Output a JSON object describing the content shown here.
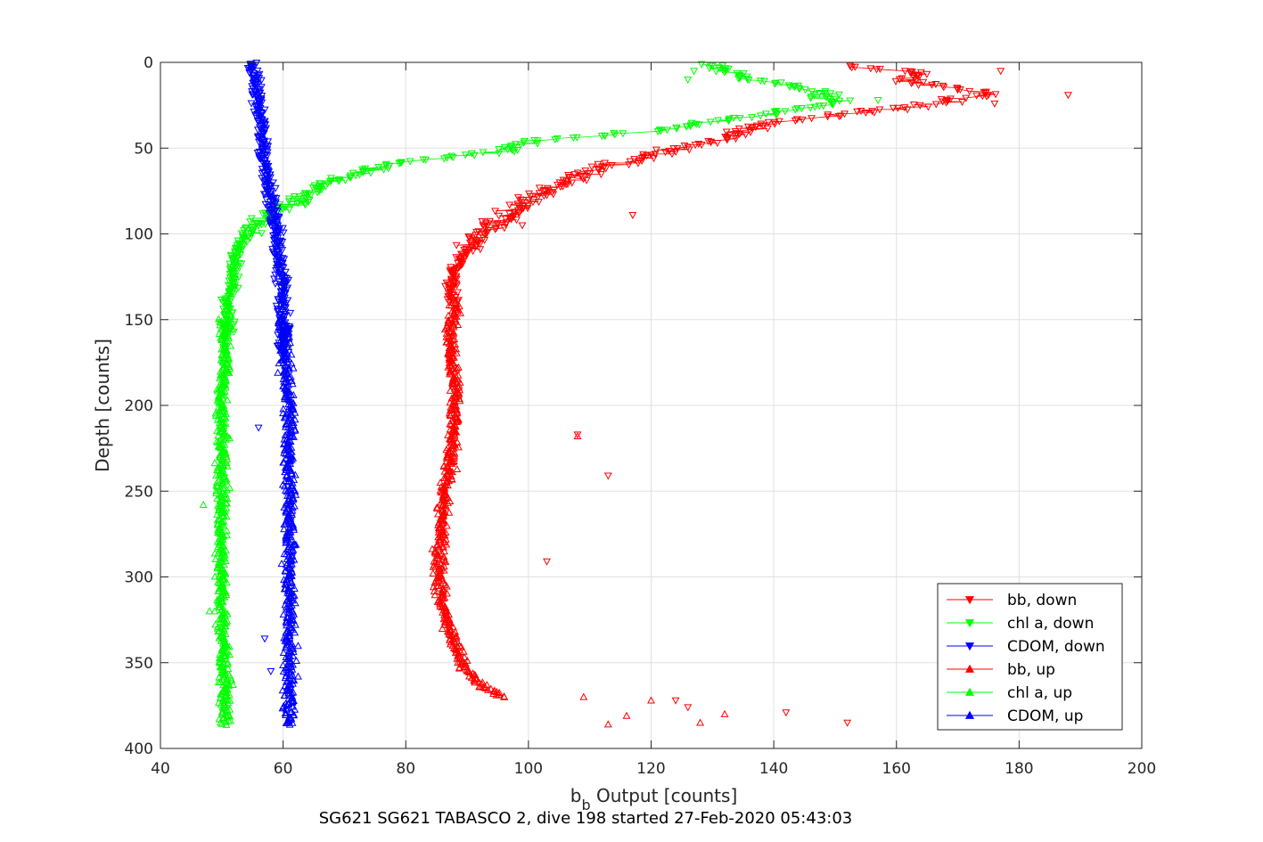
{
  "chart_data": {
    "type": "scatter",
    "title": "SG621 SG621 TABASCO 2, dive 198 started 27-Feb-2020 05:43:03",
    "xlabel_main": "b",
    "xlabel_sub": "b",
    "xlabel_rest": " Output [counts]",
    "ylabel": "Depth [counts]",
    "xlim": [
      40,
      200
    ],
    "ylim": [
      0,
      400
    ],
    "y_reversed": true,
    "grid": true,
    "legend_position": "bottom-right",
    "xticks": [
      "40",
      "60",
      "80",
      "100",
      "120",
      "140",
      "160",
      "180",
      "200"
    ],
    "yticks": [
      "0",
      "50",
      "100",
      "150",
      "200",
      "250",
      "300",
      "350",
      "400"
    ],
    "series": [
      {
        "name": "bb, down",
        "color": "#ff0000",
        "marker": "triangle-down",
        "connected": true,
        "profile": [
          [
            2,
            150
          ],
          [
            6,
            165
          ],
          [
            10,
            160
          ],
          [
            18,
            175
          ],
          [
            25,
            165
          ],
          [
            35,
            140
          ],
          [
            45,
            130
          ],
          [
            55,
            120
          ],
          [
            62,
            112
          ],
          [
            70,
            106
          ],
          [
            80,
            100
          ],
          [
            90,
            97
          ],
          [
            100,
            92
          ],
          [
            110,
            90
          ],
          [
            120,
            88
          ],
          [
            130,
            87.5
          ],
          [
            140,
            87.5
          ]
        ],
        "outliers": [
          [
            5,
            177
          ],
          [
            19,
            188
          ],
          [
            24,
            176
          ],
          [
            89,
            117
          ],
          [
            95,
            99
          ],
          [
            217,
            108
          ],
          [
            241,
            113
          ],
          [
            291,
            103
          ],
          [
            379,
            142
          ],
          [
            385,
            152
          ],
          [
            372,
            124
          ],
          [
            376,
            126
          ]
        ]
      },
      {
        "name": "chl a, down",
        "color": "#00ff00",
        "marker": "triangle-down",
        "connected": true,
        "profile": [
          [
            1,
            130
          ],
          [
            6,
            132
          ],
          [
            12,
            140
          ],
          [
            18,
            148
          ],
          [
            24,
            150
          ],
          [
            32,
            135
          ],
          [
            40,
            120
          ],
          [
            46,
            100
          ],
          [
            52,
            95
          ],
          [
            58,
            80
          ],
          [
            64,
            72
          ],
          [
            70,
            68
          ],
          [
            76,
            64
          ],
          [
            82,
            62
          ],
          [
            88,
            58
          ],
          [
            94,
            56
          ],
          [
            100,
            54
          ],
          [
            108,
            52.5
          ],
          [
            120,
            52
          ],
          [
            130,
            51.5
          ],
          [
            140,
            51
          ],
          [
            150,
            51
          ],
          [
            160,
            51
          ]
        ],
        "outliers": [
          [
            5,
            127
          ],
          [
            10,
            126
          ],
          [
            22,
            157
          ]
        ]
      },
      {
        "name": "CDOM, down",
        "color": "#0000ff",
        "marker": "triangle-down",
        "connected": true,
        "profile": [
          [
            0,
            55
          ],
          [
            20,
            56
          ],
          [
            40,
            56.5
          ],
          [
            60,
            57
          ],
          [
            80,
            58
          ],
          [
            100,
            59
          ],
          [
            120,
            59.5
          ],
          [
            140,
            60
          ],
          [
            160,
            60
          ],
          [
            170,
            60
          ]
        ],
        "outliers": [
          [
            213,
            56
          ],
          [
            336,
            57
          ],
          [
            355,
            58
          ]
        ]
      },
      {
        "name": "bb, up",
        "color": "#ff0000",
        "marker": "triangle-up",
        "connected": false,
        "profile": [
          [
            140,
            88
          ],
          [
            160,
            87.5
          ],
          [
            180,
            88
          ],
          [
            200,
            88
          ],
          [
            220,
            87.5
          ],
          [
            240,
            87
          ],
          [
            260,
            86
          ],
          [
            280,
            85.5
          ],
          [
            300,
            85.5
          ],
          [
            320,
            86
          ],
          [
            340,
            88
          ],
          [
            355,
            90
          ],
          [
            365,
            93
          ],
          [
            370,
            96
          ]
        ],
        "outliers": [
          [
            218,
            108
          ],
          [
            370,
            109
          ],
          [
            381,
            116
          ],
          [
            386,
            113
          ],
          [
            372,
            120
          ],
          [
            385,
            128
          ],
          [
            380,
            132
          ]
        ]
      },
      {
        "name": "chl a, up",
        "color": "#00ff00",
        "marker": "triangle-up",
        "connected": false,
        "profile": [
          [
            150,
            50.5
          ],
          [
            180,
            50.5
          ],
          [
            200,
            50
          ],
          [
            230,
            50
          ],
          [
            260,
            50
          ],
          [
            290,
            50
          ],
          [
            320,
            50
          ],
          [
            350,
            50.5
          ],
          [
            386,
            50.5
          ]
        ],
        "outliers": [
          [
            258,
            47
          ],
          [
            320,
            48
          ]
        ]
      },
      {
        "name": "CDOM, up",
        "color": "#0000ff",
        "marker": "triangle-up",
        "connected": false,
        "profile": [
          [
            150,
            60
          ],
          [
            180,
            60.5
          ],
          [
            200,
            61
          ],
          [
            230,
            61
          ],
          [
            260,
            61
          ],
          [
            290,
            61
          ],
          [
            320,
            61
          ],
          [
            350,
            61
          ],
          [
            386,
            61
          ]
        ],
        "outliers": []
      }
    ]
  }
}
